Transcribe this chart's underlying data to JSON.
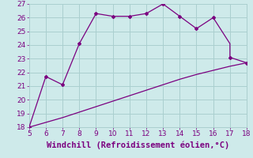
{
  "x_upper": [
    5,
    6,
    6,
    7,
    8,
    9,
    10,
    11,
    12,
    12,
    13,
    14,
    15,
    16,
    17,
    17,
    18
  ],
  "y_upper": [
    18.0,
    21.7,
    21.7,
    21.1,
    24.1,
    26.3,
    26.1,
    26.1,
    26.3,
    26.3,
    27.0,
    26.1,
    25.2,
    26.0,
    24.1,
    23.1,
    22.7
  ],
  "x_lower": [
    5,
    6,
    7,
    8,
    9,
    10,
    11,
    12,
    13,
    14,
    15,
    16,
    17,
    18
  ],
  "y_lower": [
    18.0,
    18.35,
    18.7,
    19.1,
    19.5,
    19.9,
    20.3,
    20.7,
    21.1,
    21.5,
    21.85,
    22.15,
    22.45,
    22.7
  ],
  "marker_x": [
    5,
    6,
    7,
    8,
    9,
    10,
    11,
    12,
    13,
    14,
    15,
    16,
    17,
    18
  ],
  "marker_y": [
    18.0,
    21.7,
    21.1,
    24.1,
    26.3,
    26.1,
    26.1,
    26.3,
    27.0,
    26.1,
    25.2,
    26.0,
    23.1,
    22.7
  ],
  "xlim": [
    5,
    18
  ],
  "ylim": [
    18,
    27
  ],
  "xticks": [
    5,
    6,
    7,
    8,
    9,
    10,
    11,
    12,
    13,
    14,
    15,
    16,
    17,
    18
  ],
  "yticks": [
    18,
    19,
    20,
    21,
    22,
    23,
    24,
    25,
    26,
    27
  ],
  "xlabel": "Windchill (Refroidissement éolien,°C)",
  "line_color": "#7b0080",
  "bg_color": "#ceeaea",
  "grid_color": "#aacfcf",
  "tick_fontsize": 6.5,
  "label_fontsize": 7.5
}
